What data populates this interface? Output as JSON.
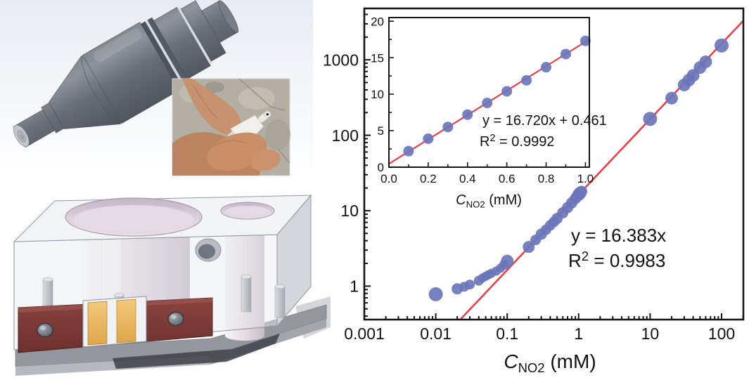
{
  "panels": {
    "sensor_cad": {
      "icon_name": "sensor-probe-cad-render",
      "body_color": "#6a6e78",
      "background_color": "#edf0f5"
    },
    "probe_photo": {
      "icon_name": "hand-holding-probe-photo",
      "probe_color": "#f2f1ee",
      "skin_color": "#c48c66",
      "background_color": "#b3afa4"
    },
    "flow_cell_cad": {
      "icon_name": "flow-cell-block-cad-render",
      "block_color": "#eef0f3",
      "cavity_color": "#d9cdd8",
      "pcb_color": "#7b3a37",
      "electrode_pad_color": "#eebd63",
      "base_color": "#94979e"
    }
  },
  "chart_data": [
    {
      "id": "main",
      "type": "scatter",
      "x_scale": "log",
      "y_scale": "log",
      "title": "",
      "xlabel": {
        "var": "C",
        "sub": "NO2",
        "rest": " (mM)"
      },
      "ylabel": "",
      "xlim": [
        0.001,
        202
      ],
      "ylim": [
        0.36,
        4800
      ],
      "x_ticks": {
        "values": [
          0.001,
          0.01,
          0.1,
          1,
          10,
          100
        ],
        "labels": [
          "0.001",
          "0.01",
          "0.1",
          "1",
          "10",
          "100"
        ]
      },
      "y_ticks": {
        "values": [
          1,
          10,
          100,
          1000
        ],
        "labels": [
          "1",
          "10",
          "100",
          "1000"
        ]
      },
      "grid": false,
      "legend": "none",
      "point_color": "#6b76ba",
      "points": [
        [
          0.01,
          0.78,
          10
        ],
        [
          0.02,
          0.92,
          8
        ],
        [
          0.025,
          0.98,
          7
        ],
        [
          0.03,
          1.05,
          7
        ],
        [
          0.04,
          1.18,
          7
        ],
        [
          0.045,
          1.28,
          6.5
        ],
        [
          0.05,
          1.35,
          6.5
        ],
        [
          0.055,
          1.42,
          6.5
        ],
        [
          0.06,
          1.48,
          6.5
        ],
        [
          0.07,
          1.58,
          6.5
        ],
        [
          0.08,
          1.72,
          6.5
        ],
        [
          0.09,
          1.9,
          7
        ],
        [
          0.1,
          2.15,
          9
        ],
        [
          0.2,
          3.3,
          8.5
        ],
        [
          0.25,
          4.1,
          7.5
        ],
        [
          0.3,
          4.9,
          8
        ],
        [
          0.35,
          5.6,
          7.5
        ],
        [
          0.4,
          6.4,
          7.5
        ],
        [
          0.45,
          7.1,
          7.5
        ],
        [
          0.5,
          7.9,
          8
        ],
        [
          0.6,
          9.4,
          8
        ],
        [
          0.7,
          11.0,
          8
        ],
        [
          0.8,
          12.7,
          8
        ],
        [
          0.9,
          14.5,
          8
        ],
        [
          0.95,
          15.4,
          8
        ],
        [
          1.0,
          16.3,
          9
        ],
        [
          1.05,
          17.2,
          9
        ],
        [
          1.1,
          18.0,
          8
        ],
        [
          10,
          165,
          10
        ],
        [
          20,
          310,
          9
        ],
        [
          30,
          465,
          9
        ],
        [
          35,
          540,
          9
        ],
        [
          40,
          620,
          9
        ],
        [
          50,
          790,
          9
        ],
        [
          60,
          940,
          9
        ],
        [
          100,
          1550,
          10
        ]
      ],
      "fit": {
        "slope": 16.383,
        "intercept": 0,
        "color": "#e83f4d",
        "equation": "y = 16.383x",
        "r_squared": {
          "base": "R",
          "sup": "2",
          "rest": " = 0.9983"
        }
      }
    },
    {
      "id": "inset",
      "type": "scatter",
      "x_scale": "linear",
      "y_scale": "linear",
      "title": "",
      "xlabel": {
        "var": "C",
        "sub": "NO2",
        "rest": " (mM)"
      },
      "ylabel": "",
      "xlim": [
        0,
        1.02
      ],
      "ylim": [
        0,
        20.5
      ],
      "x_ticks": {
        "values": [
          0,
          0.2,
          0.4,
          0.6,
          0.8,
          1.0
        ],
        "labels": [
          "0.0",
          "0.2",
          "0.4",
          "0.6",
          "0.8",
          "1.0"
        ]
      },
      "y_ticks": {
        "values": [
          0,
          5,
          10,
          15,
          20
        ],
        "labels": [
          "0",
          "5",
          "10",
          "15",
          "20"
        ]
      },
      "grid": false,
      "legend": "none",
      "point_color": "#6b76ba",
      "points": [
        [
          0.1,
          2.2,
          7.5
        ],
        [
          0.2,
          3.9,
          7.5
        ],
        [
          0.3,
          5.5,
          7.5
        ],
        [
          0.4,
          7.2,
          7.5
        ],
        [
          0.5,
          8.8,
          7.5
        ],
        [
          0.6,
          10.4,
          7.5
        ],
        [
          0.7,
          11.9,
          7.5
        ],
        [
          0.8,
          13.7,
          7.5
        ],
        [
          0.9,
          15.5,
          7.5
        ],
        [
          1.0,
          17.3,
          7.5
        ]
      ],
      "fit": {
        "slope": 16.72,
        "intercept": 0.461,
        "color": "#e83f4d",
        "equation": "y = 16.720x + 0.461",
        "r_squared": {
          "base": "R",
          "sup": "2",
          "rest": " = 0.9992"
        }
      }
    }
  ]
}
